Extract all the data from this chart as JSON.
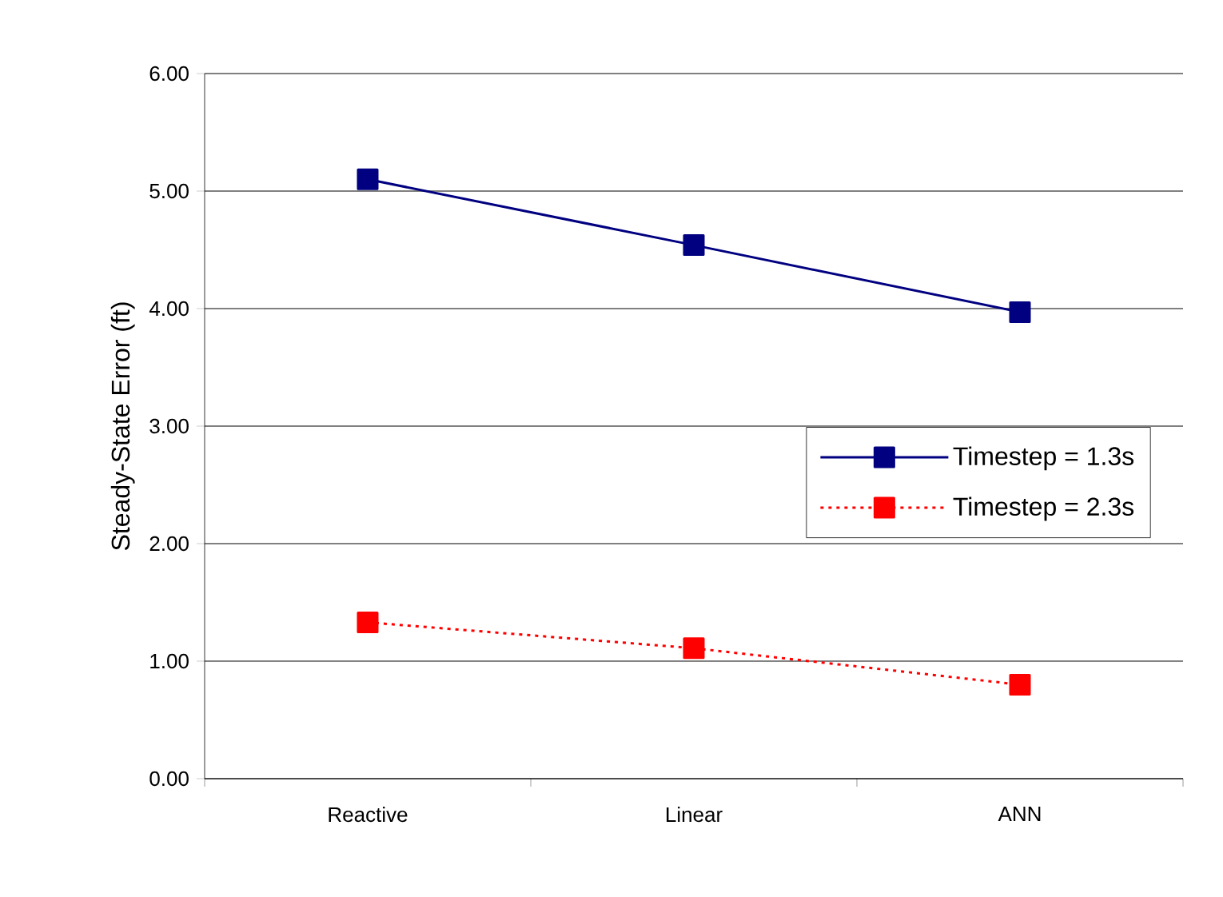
{
  "chart_data": {
    "type": "line",
    "ylabel": "Steady-State Error (ft)",
    "categories": [
      "Reactive",
      "Linear",
      "ANN"
    ],
    "series": [
      {
        "name": "Timestep = 1.3s",
        "color": "#000080",
        "values": [
          5.1,
          4.54,
          3.97
        ],
        "line_style": "solid"
      },
      {
        "name": "Timestep = 2.3s",
        "color": "#ff0000",
        "values": [
          1.33,
          1.11,
          0.8
        ],
        "line_style": "dotted"
      }
    ],
    "ylim": [
      0,
      6
    ],
    "yticks": [
      {
        "value": 0,
        "label": "0.00"
      },
      {
        "value": 1,
        "label": "1.00"
      },
      {
        "value": 2,
        "label": "2.00"
      },
      {
        "value": 3,
        "label": "3.00"
      },
      {
        "value": 4,
        "label": "4.00"
      },
      {
        "value": 5,
        "label": "5.00"
      },
      {
        "value": 6,
        "label": "6.00"
      }
    ],
    "grid": "y",
    "legend": "right",
    "marker": "square"
  }
}
